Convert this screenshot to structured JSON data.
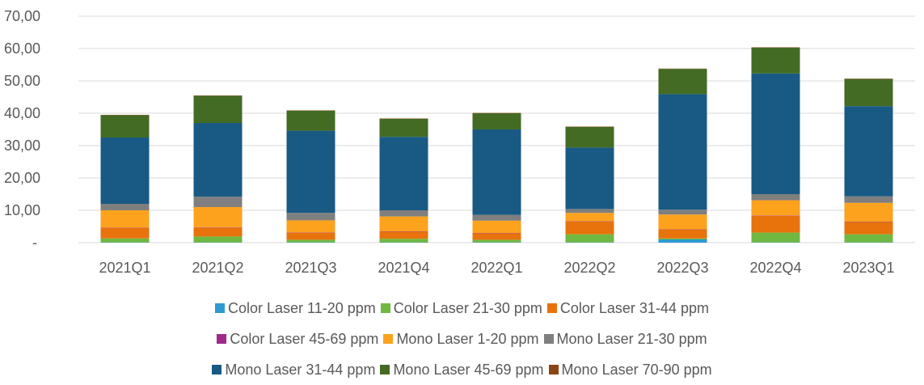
{
  "chart_data": {
    "type": "bar",
    "stacked": true,
    "categories": [
      "2021Q1",
      "2021Q2",
      "2021Q3",
      "2021Q4",
      "2022Q1",
      "2022Q2",
      "2022Q3",
      "2022Q4",
      "2023Q1"
    ],
    "ylim": [
      0,
      70
    ],
    "yticks": [
      "-",
      "10,00",
      "20,00",
      "30,00",
      "40,00",
      "50,00",
      "60,00",
      "70,00"
    ],
    "grid": true,
    "legend_position": "bottom",
    "series": [
      {
        "name": "Color Laser 11-20 ppm",
        "color": "#2E9AD0",
        "values": [
          0.1,
          0.1,
          0.1,
          0.1,
          0.1,
          0.1,
          1.0,
          0.1,
          0.1
        ]
      },
      {
        "name": "Color Laser 21-30 ppm",
        "color": "#70B842",
        "values": [
          1.2,
          1.8,
          0.8,
          1.1,
          0.8,
          2.5,
          0.3,
          3.0,
          2.5
        ]
      },
      {
        "name": "Color Laser 31-44 ppm",
        "color": "#E8730C",
        "values": [
          3.2,
          2.8,
          2.2,
          2.2,
          2.0,
          4.0,
          2.7,
          5.2,
          3.8
        ]
      },
      {
        "name": "Color Laser 45-69 ppm",
        "color": "#9E2A8C",
        "values": [
          0.1,
          0.1,
          0.1,
          0.1,
          0.1,
          0.1,
          0.1,
          0.1,
          0.1
        ]
      },
      {
        "name": "Mono Laser 1-20 ppm",
        "color": "#FCA21C",
        "values": [
          5.4,
          6.2,
          3.7,
          4.6,
          3.8,
          2.5,
          4.6,
          4.7,
          5.8
        ]
      },
      {
        "name": "Mono Laser 21-30 ppm",
        "color": "#7F7F7F",
        "values": [
          2.0,
          3.2,
          2.3,
          1.9,
          1.8,
          1.2,
          1.5,
          1.9,
          2.0
        ]
      },
      {
        "name": "Mono Laser 31-44 ppm",
        "color": "#185A84",
        "values": [
          20.5,
          22.8,
          25.4,
          22.7,
          26.4,
          19.0,
          35.7,
          37.3,
          27.9
        ]
      },
      {
        "name": "Mono Laser 45-69 ppm",
        "color": "#436B24",
        "values": [
          6.9,
          8.4,
          6.2,
          5.6,
          5.0,
          6.4,
          7.8,
          8.0,
          8.4
        ]
      },
      {
        "name": "Mono Laser 70-90 ppm",
        "color": "#8B4513",
        "values": [
          0.1,
          0.1,
          0.1,
          0.1,
          0.1,
          0.1,
          0.1,
          0.1,
          0.1
        ]
      }
    ]
  }
}
